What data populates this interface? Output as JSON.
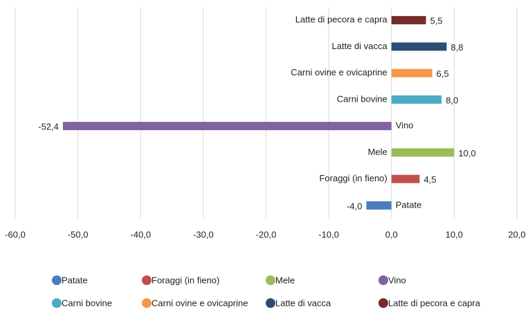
{
  "chart_data": {
    "type": "hbar",
    "categories": [
      "Patate",
      "Foraggi (in fieno)",
      "Mele",
      "Vino",
      "Carni bovine",
      "Carni ovine e ovicaprine",
      "Latte di vacca",
      "Latte di pecora e capra"
    ],
    "values": [
      -4.0,
      4.5,
      10.0,
      -52.4,
      8.0,
      6.5,
      8.8,
      5.5
    ],
    "value_labels": [
      "-4,0",
      "4,5",
      "10,0",
      "-52,4",
      "8,0",
      "6,5",
      "8,8",
      "5,5"
    ],
    "colors": [
      "#4a7ebb",
      "#c0504d",
      "#9bbb59",
      "#8064a2",
      "#4bacc6",
      "#f79646",
      "#2c4d75",
      "#772c2a"
    ],
    "xlim": [
      -60,
      20
    ],
    "xticks": [
      {
        "value": -60,
        "label": "-60,0"
      },
      {
        "value": -50,
        "label": "-50,0"
      },
      {
        "value": -40,
        "label": "-40,0"
      },
      {
        "value": -30,
        "label": "-30,0"
      },
      {
        "value": -20,
        "label": "-20,0"
      },
      {
        "value": -10,
        "label": "-10,0"
      },
      {
        "value": 0,
        "label": "0,0"
      },
      {
        "value": 10,
        "label": "10,0"
      },
      {
        "value": 20,
        "label": "20,0"
      }
    ],
    "grid": true,
    "legend": "bottom"
  }
}
